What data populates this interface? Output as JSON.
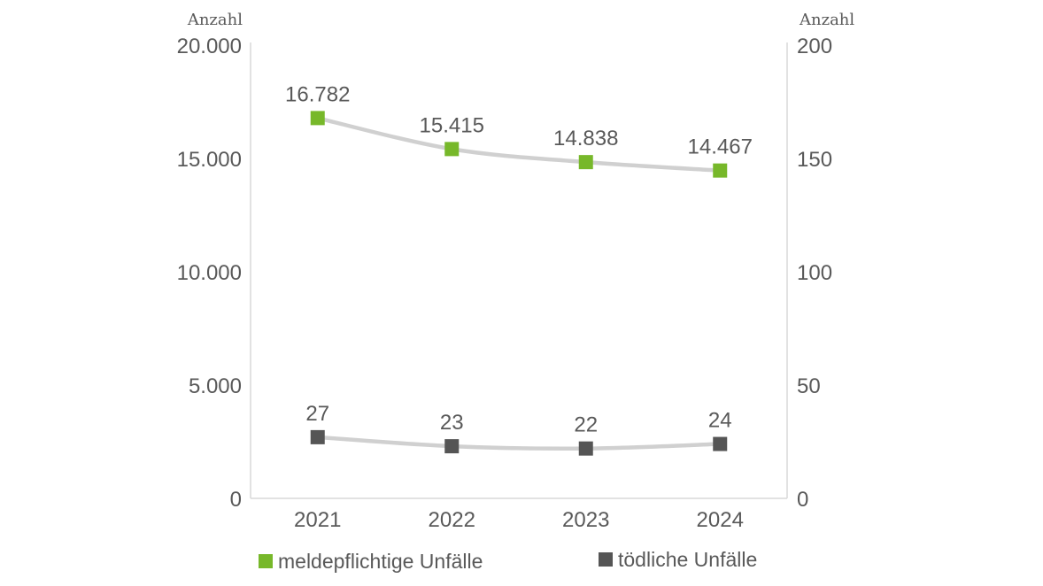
{
  "chart_data": {
    "type": "line",
    "categories": [
      "2021",
      "2022",
      "2023",
      "2024"
    ],
    "left_axis": {
      "unit_label": "Anzahl",
      "ylim": [
        0,
        20000
      ],
      "tick_labels": [
        "0",
        "5.000",
        "10.000",
        "15.000",
        "20.000"
      ]
    },
    "right_axis": {
      "unit_label": "Anzahl",
      "ylim": [
        0,
        200
      ],
      "tick_labels": [
        "0",
        "50",
        "100",
        "150",
        "200"
      ]
    },
    "series": [
      {
        "name": "meldepflichtige Unfälle",
        "axis": "left",
        "values": [
          16782,
          15415,
          14838,
          14467
        ],
        "data_labels": [
          "16.782",
          "15.415",
          "14.838",
          "14.467"
        ],
        "marker_color": "#77b82a",
        "line_color": "#d0d0d0"
      },
      {
        "name": "tödliche Unfälle",
        "axis": "right",
        "values": [
          27,
          23,
          22,
          24
        ],
        "data_labels": [
          "27",
          "23",
          "22",
          "24"
        ],
        "marker_color": "#555555",
        "line_color": "#d0d0d0"
      }
    ],
    "grid": false,
    "legend_position": "bottom"
  }
}
